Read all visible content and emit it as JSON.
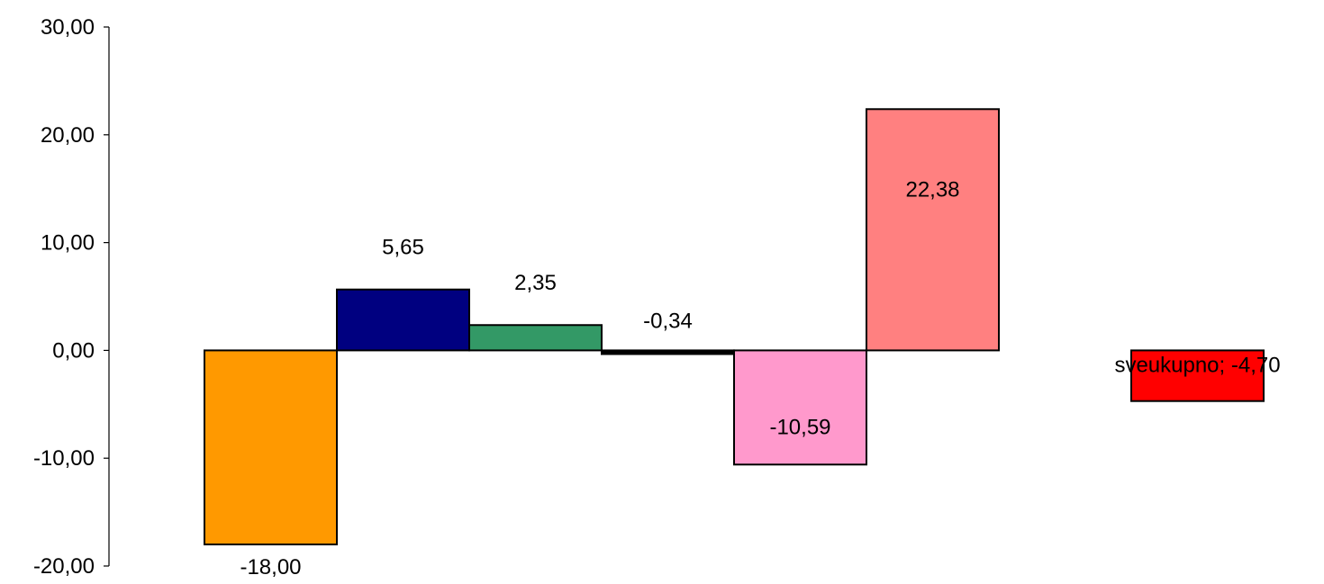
{
  "chart_data": {
    "type": "bar",
    "title": "",
    "xlabel": "",
    "ylabel": "",
    "ylim": [
      -20,
      30
    ],
    "yticks": [
      {
        "value": -20,
        "label": "-20,00"
      },
      {
        "value": -10,
        "label": "-10,00"
      },
      {
        "value": 0,
        "label": "0,00"
      },
      {
        "value": 10,
        "label": "10,00"
      },
      {
        "value": 20,
        "label": "20,00"
      },
      {
        "value": 30,
        "label": "30,00"
      }
    ],
    "grid": false,
    "legend": "none",
    "bars": [
      {
        "value": -18.0,
        "label": "-18,00",
        "color": "#FF9900"
      },
      {
        "value": 5.65,
        "label": "5,65",
        "color": "#000080"
      },
      {
        "value": 2.35,
        "label": "2,35",
        "color": "#339966"
      },
      {
        "value": -0.34,
        "label": "-0,34",
        "color": "#000000"
      },
      {
        "value": -10.59,
        "label": "-10,59",
        "color": "#FF99CC"
      },
      {
        "value": 22.38,
        "label": "22,38",
        "color": "#FF8080"
      },
      {
        "value": null,
        "label": "",
        "color": ""
      },
      {
        "value": -4.7,
        "label": "sveukupno; -4,70",
        "color": "#FF0000"
      }
    ]
  }
}
